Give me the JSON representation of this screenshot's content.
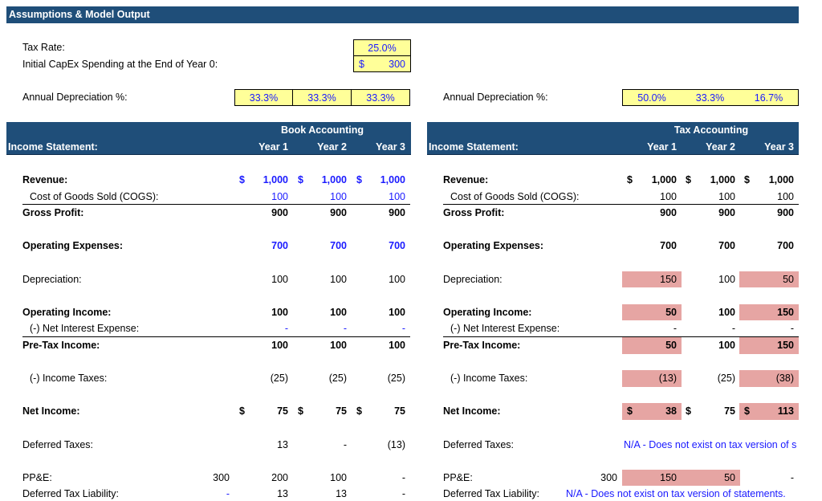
{
  "header": {
    "title": "Assumptions & Model Output"
  },
  "assumptions": {
    "tax_rate": {
      "label": "Tax Rate:",
      "value": "25.0%"
    },
    "capex": {
      "label": "Initial CapEx Spending at the End of Year 0:",
      "symbol": "$",
      "value": "300"
    }
  },
  "book": {
    "depreciation_pct": {
      "label": "Annual Depreciation %:",
      "values": [
        "33.3%",
        "33.3%",
        "33.3%"
      ]
    },
    "section": "Book Accounting",
    "statement_label": "Income Statement:",
    "years": [
      "Year 1",
      "Year 2",
      "Year 3"
    ],
    "rows": [
      {
        "label": "Revenue:",
        "bold": true,
        "blue": true,
        "cells": [
          {
            "symbol": "$",
            "text": "1,000"
          },
          {
            "symbol": "$",
            "text": "1,000"
          },
          {
            "symbol": "$",
            "text": "1,000"
          }
        ]
      },
      {
        "label": "Cost of Goods Sold (COGS):",
        "indent": true,
        "blue": true,
        "border": true,
        "cells": [
          "100",
          "100",
          "100"
        ]
      },
      {
        "label": "Gross Profit:",
        "bold": true,
        "cells": [
          "900",
          "900",
          "900"
        ]
      },
      {
        "label": "Operating Expenses:",
        "bold": true,
        "blue": true,
        "cells": [
          "700",
          "700",
          "700"
        ]
      },
      {
        "label": "Depreciation:",
        "cells": [
          "100",
          "100",
          "100"
        ]
      },
      {
        "label": "Operating Income:",
        "bold": true,
        "cells": [
          "100",
          "100",
          "100"
        ]
      },
      {
        "label": "(-) Net Interest Expense:",
        "indent": true,
        "blue": true,
        "border": true,
        "cells": [
          "-",
          "-",
          "-"
        ]
      },
      {
        "label": "Pre-Tax Income:",
        "bold": true,
        "cells": [
          "100",
          "100",
          "100"
        ]
      },
      {
        "label": "(-) Income Taxes:",
        "indent": true,
        "cells": [
          "(25)",
          "(25)",
          "(25)"
        ]
      },
      {
        "label": "Net Income:",
        "bold": true,
        "cells": [
          {
            "symbol": "$",
            "text": "75"
          },
          {
            "symbol": "$",
            "text": "75"
          },
          {
            "symbol": "$",
            "text": "75"
          }
        ]
      },
      {
        "label": "Deferred Taxes:",
        "cells": [
          "13",
          "-",
          "(13)"
        ]
      },
      {
        "label": "PP&E:",
        "pre": "300",
        "cells": [
          "200",
          "100",
          "-"
        ]
      },
      {
        "label": "Deferred Tax Liability:",
        "pre": "-",
        "pre_blue": true,
        "cells": [
          "13",
          "13",
          "-"
        ]
      }
    ]
  },
  "tax": {
    "depreciation_pct": {
      "label": "Annual Depreciation %:",
      "values": [
        "50.0%",
        "33.3%",
        "16.7%"
      ]
    },
    "section": "Tax Accounting",
    "statement_label": "Income Statement:",
    "years": [
      "Year 1",
      "Year 2",
      "Year 3"
    ],
    "rows": [
      {
        "label": "Revenue:",
        "bold": true,
        "cells": [
          {
            "symbol": "$",
            "text": "1,000"
          },
          {
            "symbol": "$",
            "text": "1,000"
          },
          {
            "symbol": "$",
            "text": "1,000"
          }
        ]
      },
      {
        "label": "Cost of Goods Sold (COGS):",
        "indent": true,
        "border": true,
        "cells": [
          "100",
          "100",
          "100"
        ]
      },
      {
        "label": "Gross Profit:",
        "bold": true,
        "cells": [
          "900",
          "900",
          "900"
        ]
      },
      {
        "label": "Operating Expenses:",
        "bold": true,
        "cells": [
          "700",
          "700",
          "700"
        ]
      },
      {
        "label": "Depreciation:",
        "cells": [
          "150",
          "100",
          "50"
        ],
        "highlight": [
          true,
          false,
          true
        ]
      },
      {
        "label": "Operating Income:",
        "bold": true,
        "cells": [
          "50",
          "100",
          "150"
        ],
        "highlight": [
          true,
          false,
          true
        ]
      },
      {
        "label": "(-) Net Interest Expense:",
        "indent": true,
        "border": true,
        "cells": [
          "-",
          "-",
          "-"
        ]
      },
      {
        "label": "Pre-Tax Income:",
        "bold": true,
        "cells": [
          "50",
          "100",
          "150"
        ],
        "highlight": [
          true,
          false,
          true
        ]
      },
      {
        "label": "(-) Income Taxes:",
        "indent": true,
        "cells": [
          "(13)",
          "(25)",
          "(38)"
        ],
        "highlight": [
          true,
          false,
          true
        ]
      },
      {
        "label": "Net Income:",
        "bold": true,
        "cells": [
          {
            "symbol": "$",
            "text": "38"
          },
          {
            "symbol": "$",
            "text": "75"
          },
          {
            "symbol": "$",
            "text": "113"
          }
        ],
        "highlight": [
          true,
          false,
          true
        ]
      },
      {
        "label": "Deferred Taxes:",
        "note": "N/A - Does not exist on tax version of s"
      },
      {
        "label": "PP&E:",
        "pre": "300",
        "cells": [
          "150",
          "50",
          "-"
        ],
        "highlight": [
          true,
          true,
          false
        ]
      },
      {
        "label": "Deferred Tax Liability:",
        "note": "N/A - Does not exist on tax version of statements."
      }
    ]
  }
}
